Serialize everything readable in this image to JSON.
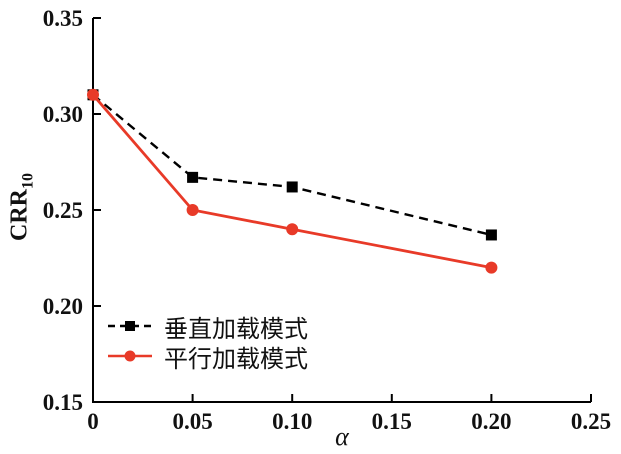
{
  "figure": {
    "background": "#ffffff"
  },
  "chart_data": {
    "type": "line",
    "title": "",
    "xlabel": "α",
    "ylabel": {
      "text": "CRR",
      "subscript": "10"
    },
    "xlim": [
      0,
      0.25
    ],
    "ylim": [
      0.15,
      0.35
    ],
    "x_ticks": [
      0,
      0.05,
      0.1,
      0.15,
      0.2,
      0.25
    ],
    "x_tick_labels": [
      "0",
      "0.05",
      "0.10",
      "0.15",
      "0.20",
      "0.25"
    ],
    "y_ticks": [
      0.15,
      0.2,
      0.25,
      0.3,
      0.35
    ],
    "y_tick_labels": [
      "0.15",
      "0.20",
      "0.25",
      "0.30",
      "0.35"
    ],
    "grid": false,
    "legend_position": "lower-left",
    "axis_color": "#000000",
    "series": [
      {
        "name": "垂直加载模式",
        "color": "#000000",
        "line_style": "dashed",
        "marker": "square",
        "x": [
          0,
          0.05,
          0.1,
          0.2
        ],
        "y": [
          0.31,
          0.267,
          0.262,
          0.237
        ]
      },
      {
        "name": "平行加载模式",
        "color": "#e83a28",
        "line_style": "solid",
        "marker": "circle",
        "x": [
          0,
          0.05,
          0.1,
          0.2
        ],
        "y": [
          0.31,
          0.25,
          0.24,
          0.22
        ]
      }
    ]
  }
}
